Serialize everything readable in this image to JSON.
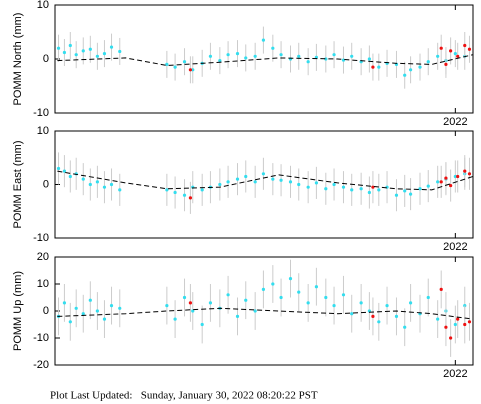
{
  "chart_data": [
    {
      "type": "scatter",
      "ylabel": "POMM North (mm)",
      "ylim": [
        -10,
        10
      ],
      "yticks": [
        -10,
        0,
        10
      ],
      "xlim": [
        2018.6,
        2022.15
      ],
      "xticks": [
        2022
      ],
      "series": [
        {
          "name": "cyan",
          "color": "#33ddee",
          "x": [
            2018.63,
            2018.68,
            2018.73,
            2018.78,
            2018.84,
            2018.9,
            2018.96,
            2019.02,
            2019.08,
            2019.15,
            2019.55,
            2019.62,
            2019.7,
            2019.77,
            2019.85,
            2019.92,
            2020.0,
            2020.07,
            2020.15,
            2020.22,
            2020.3,
            2020.37,
            2020.45,
            2020.52,
            2020.6,
            2020.67,
            2020.75,
            2020.82,
            2020.9,
            2020.97,
            2021.05,
            2021.12,
            2021.2,
            2021.27,
            2021.35,
            2021.42,
            2021.5,
            2021.57,
            2021.62,
            2021.7,
            2021.77,
            2021.85,
            2021.92,
            2022.0,
            2022.08
          ],
          "values": [
            2.0,
            1.2,
            2.5,
            0.8,
            1.5,
            1.8,
            0.5,
            1.0,
            2.2,
            1.4,
            -1.0,
            -1.5,
            -0.5,
            -2.0,
            -0.8,
            0.5,
            -0.3,
            0.8,
            1.0,
            0.2,
            0.5,
            3.5,
            2.0,
            0.8,
            0.0,
            0.5,
            -0.5,
            0.3,
            0.0,
            0.8,
            -0.2,
            0.5,
            -0.5,
            0.0,
            -1.5,
            -0.8,
            -1.0,
            -3.0,
            -2.0,
            -1.5,
            -0.5,
            0.5,
            -0.3,
            1.0,
            0.5
          ],
          "errors": [
            2.5,
            2.5,
            2.5,
            2.5,
            2.5,
            2.5,
            2.5,
            2.5,
            2.5,
            2.5,
            2.5,
            2.5,
            2.5,
            2.5,
            2.5,
            2.5,
            2.5,
            2.5,
            2.5,
            2.5,
            2.5,
            2.5,
            2.5,
            2.5,
            2.5,
            2.5,
            2.5,
            2.5,
            2.5,
            2.5,
            2.5,
            2.5,
            2.5,
            2.5,
            2.5,
            2.5,
            2.5,
            2.5,
            2.5,
            2.5,
            2.5,
            2.5,
            2.5,
            2.5,
            2.5
          ]
        },
        {
          "name": "red",
          "color": "#ee1111",
          "x": [
            2019.75,
            2021.3,
            2021.88,
            2021.92,
            2021.96,
            2022.02,
            2022.08,
            2022.12
          ],
          "values": [
            -2.0,
            -1.5,
            2.0,
            -1.0,
            1.5,
            0.5,
            2.5,
            1.8
          ],
          "errors": [
            2.5,
            2.5,
            2.5,
            2.5,
            2.5,
            2.5,
            2.5,
            2.5
          ]
        },
        {
          "name": "model",
          "color": "#000000",
          "line": true,
          "x": [
            2018.62,
            2019.2,
            2019.55,
            2020.0,
            2020.5,
            2021.0,
            2021.5,
            2021.8,
            2022.15
          ],
          "values": [
            -0.3,
            0.2,
            -1.2,
            -0.6,
            0.2,
            0.0,
            -0.8,
            -1.0,
            0.8
          ]
        }
      ]
    },
    {
      "type": "scatter",
      "ylabel": "POMM East (mm)",
      "ylim": [
        -10,
        10
      ],
      "yticks": [
        -10,
        0,
        10
      ],
      "xlim": [
        2018.6,
        2022.15
      ],
      "xticks": [
        2022
      ],
      "series": [
        {
          "name": "cyan",
          "color": "#33ddee",
          "x": [
            2018.63,
            2018.68,
            2018.73,
            2018.78,
            2018.84,
            2018.9,
            2018.96,
            2019.02,
            2019.08,
            2019.15,
            2019.55,
            2019.62,
            2019.7,
            2019.77,
            2019.85,
            2019.92,
            2020.0,
            2020.07,
            2020.15,
            2020.22,
            2020.3,
            2020.37,
            2020.45,
            2020.52,
            2020.6,
            2020.67,
            2020.75,
            2020.82,
            2020.9,
            2020.97,
            2021.05,
            2021.12,
            2021.2,
            2021.27,
            2021.35,
            2021.42,
            2021.5,
            2021.57,
            2021.62,
            2021.7,
            2021.77,
            2021.85,
            2021.92,
            2022.0,
            2022.08
          ],
          "values": [
            3.0,
            2.5,
            1.5,
            2.0,
            1.0,
            0.0,
            0.5,
            -0.5,
            0.0,
            -1.0,
            -1.0,
            -1.5,
            -2.0,
            -0.5,
            -1.0,
            -0.5,
            0.0,
            0.5,
            1.0,
            1.5,
            0.5,
            2.0,
            1.0,
            0.8,
            0.5,
            0.0,
            -0.5,
            0.3,
            -0.8,
            0.0,
            -0.5,
            -1.0,
            -0.8,
            -1.5,
            -1.0,
            -0.5,
            -2.0,
            -1.2,
            -1.8,
            -0.8,
            -0.3,
            0.5,
            1.0,
            1.5,
            2.0
          ],
          "errors": [
            3,
            3,
            3,
            3,
            3,
            3,
            3,
            3,
            3,
            3,
            3,
            3,
            3,
            3,
            3,
            3,
            3,
            3,
            3,
            3,
            3,
            3,
            3,
            3,
            3,
            3,
            3,
            3,
            3,
            3,
            3,
            3,
            3,
            3,
            3,
            3,
            3,
            3,
            3,
            3,
            3,
            3,
            3,
            3,
            3
          ]
        },
        {
          "name": "red",
          "color": "#ee1111",
          "x": [
            2019.75,
            2021.3,
            2021.88,
            2021.92,
            2021.96,
            2022.02,
            2022.08,
            2022.12
          ],
          "values": [
            -2.5,
            -0.5,
            0.5,
            1.2,
            -0.2,
            1.5,
            2.5,
            2.0
          ],
          "errors": [
            3,
            3,
            3,
            3,
            3,
            3,
            3,
            3
          ]
        },
        {
          "name": "model",
          "color": "#000000",
          "line": true,
          "x": [
            2018.62,
            2019.2,
            2019.55,
            2020.0,
            2020.5,
            2021.0,
            2021.5,
            2021.8,
            2022.15
          ],
          "values": [
            2.5,
            0.3,
            -0.8,
            -0.5,
            1.8,
            0.3,
            -0.8,
            -1.0,
            1.5
          ]
        }
      ]
    },
    {
      "type": "scatter",
      "ylabel": "POMM Up (mm)",
      "ylim": [
        -20,
        20
      ],
      "yticks": [
        -20,
        -10,
        0,
        10,
        20
      ],
      "xlim": [
        2018.6,
        2022.15
      ],
      "xticks": [
        2022
      ],
      "series": [
        {
          "name": "cyan",
          "color": "#33ddee",
          "x": [
            2018.63,
            2018.68,
            2018.73,
            2018.78,
            2018.84,
            2018.9,
            2018.96,
            2019.02,
            2019.08,
            2019.15,
            2019.55,
            2019.62,
            2019.7,
            2019.77,
            2019.85,
            2019.92,
            2020.0,
            2020.07,
            2020.15,
            2020.22,
            2020.3,
            2020.37,
            2020.45,
            2020.52,
            2020.6,
            2020.67,
            2020.75,
            2020.82,
            2020.9,
            2020.97,
            2021.05,
            2021.12,
            2021.2,
            2021.27,
            2021.35,
            2021.42,
            2021.5,
            2021.57,
            2021.62,
            2021.7,
            2021.77,
            2021.85,
            2021.92,
            2022.0,
            2022.08
          ],
          "values": [
            -2,
            3,
            -4,
            1,
            -1,
            4,
            0,
            -3,
            2,
            1,
            2,
            -3,
            5,
            0,
            -5,
            3,
            1,
            6,
            -2,
            4,
            0,
            8,
            10,
            5,
            12,
            7,
            3,
            9,
            5,
            2,
            6,
            -1,
            3,
            0,
            -4,
            2,
            -2,
            -6,
            3,
            -1,
            5,
            -3,
            0,
            -5,
            2
          ],
          "errors": [
            7,
            7,
            7,
            7,
            7,
            7,
            7,
            7,
            7,
            7,
            7,
            7,
            7,
            7,
            7,
            7,
            7,
            7,
            7,
            7,
            7,
            7,
            7,
            7,
            7,
            7,
            7,
            7,
            7,
            7,
            7,
            7,
            7,
            7,
            7,
            7,
            7,
            7,
            7,
            7,
            7,
            7,
            7,
            7,
            7
          ]
        },
        {
          "name": "red",
          "color": "#ee1111",
          "x": [
            2019.75,
            2021.3,
            2021.88,
            2021.92,
            2021.96,
            2022.02,
            2022.08,
            2022.12
          ],
          "values": [
            3,
            -2,
            8,
            -6,
            -10,
            -3,
            -5,
            -4
          ],
          "errors": [
            7,
            7,
            7,
            7,
            7,
            7,
            7,
            7
          ]
        },
        {
          "name": "model",
          "color": "#000000",
          "line": true,
          "x": [
            2018.62,
            2019.2,
            2019.55,
            2020.0,
            2020.5,
            2021.0,
            2021.5,
            2021.8,
            2022.15
          ],
          "values": [
            -2,
            -1,
            0,
            1,
            0,
            -1,
            0,
            -1,
            -3
          ]
        }
      ]
    }
  ],
  "footer": "Plot Last Updated:   Sunday, January 30, 2022 08:20:22 PST"
}
